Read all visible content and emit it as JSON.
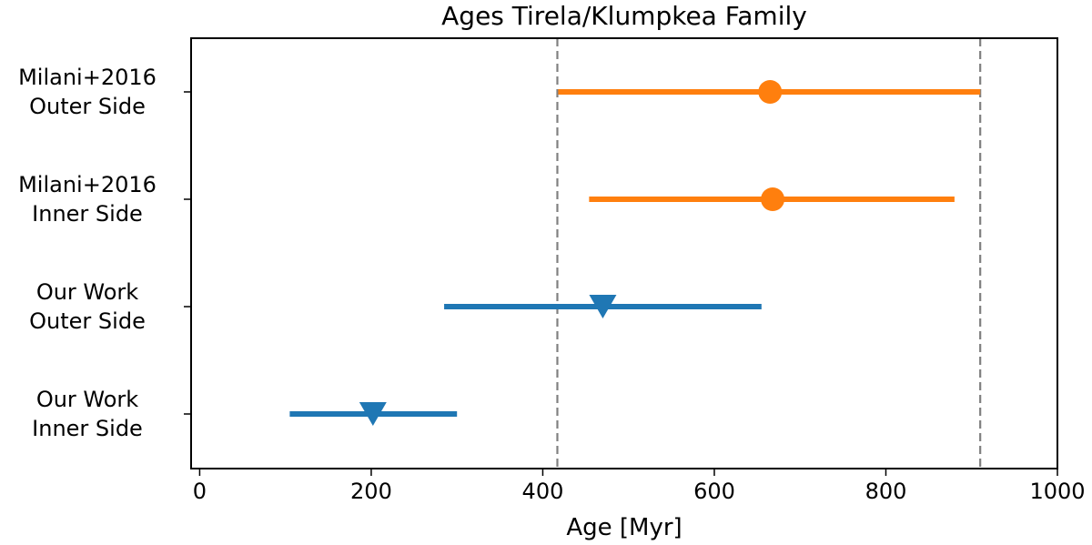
{
  "chart_data": {
    "type": "scatter",
    "title": "Ages Tirela/Klumpkea Family",
    "xlabel": "Age [Myr]",
    "ylabel": "",
    "xlim": [
      -10,
      1000
    ],
    "xticks": [
      "0",
      "200",
      "400",
      "600",
      "800",
      "1000"
    ],
    "categories": [
      [
        "Milani+2016",
        "Outer Side"
      ],
      [
        "Milani+2016",
        "Inner Side"
      ],
      [
        "Our Work",
        "Outer Side"
      ],
      [
        "Our Work",
        "Inner Side"
      ]
    ],
    "reference_lines": [
      417,
      910
    ],
    "grid": false,
    "legend": "none",
    "series": [
      {
        "marker": "circle",
        "color": "#ff7f0e",
        "points": [
          {
            "category_index": 0,
            "value": 665,
            "low": 418,
            "high": 910
          },
          {
            "category_index": 1,
            "value": 668,
            "low": 454,
            "high": 880
          }
        ]
      },
      {
        "marker": "triangle-down",
        "color": "#1f77b4",
        "points": [
          {
            "category_index": 2,
            "value": 470,
            "low": 285,
            "high": 655
          },
          {
            "category_index": 3,
            "value": 202,
            "low": 105,
            "high": 300
          }
        ]
      }
    ]
  }
}
